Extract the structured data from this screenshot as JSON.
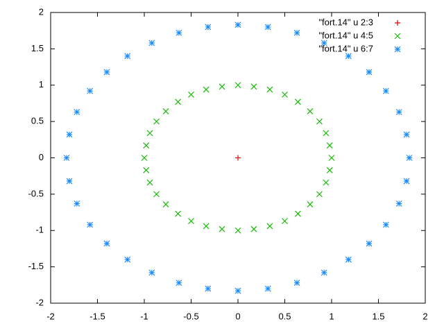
{
  "chart_data": {
    "type": "scatter",
    "xlim": [
      -2,
      2
    ],
    "ylim": [
      -2,
      2
    ],
    "xticks": [
      -2,
      -1.5,
      -1,
      -0.5,
      0,
      0.5,
      1,
      1.5,
      2
    ],
    "yticks": [
      -2,
      -1.5,
      -1,
      -0.5,
      0,
      0.5,
      1,
      1.5,
      2
    ],
    "grid": false,
    "legend": "top-right",
    "series": [
      {
        "name": "\"fort.14\" u 2:3",
        "color": "#e0000e",
        "marker": "plus",
        "x": [
          0
        ],
        "y": [
          0
        ]
      },
      {
        "name": "\"fort.14\" u 4:5",
        "color": "#11b900",
        "marker": "cross",
        "x": [
          1,
          0.98,
          0.94,
          0.87,
          0.77,
          0.64,
          0.5,
          0.34,
          0.17,
          0,
          -0.17,
          -0.34,
          -0.5,
          -0.64,
          -0.77,
          -0.87,
          -0.94,
          -0.98,
          -1,
          -0.98,
          -0.94,
          -0.87,
          -0.77,
          -0.64,
          -0.5,
          -0.34,
          -0.17,
          0,
          0.17,
          0.34,
          0.5,
          0.64,
          0.77,
          0.87,
          0.94,
          0.98
        ],
        "y": [
          0,
          0.17,
          0.34,
          0.5,
          0.64,
          0.77,
          0.87,
          0.94,
          0.98,
          1,
          0.98,
          0.94,
          0.87,
          0.77,
          0.64,
          0.5,
          0.34,
          0.17,
          0,
          -0.17,
          -0.34,
          -0.5,
          -0.64,
          -0.77,
          -0.87,
          -0.94,
          -0.98,
          -1,
          -0.98,
          -0.94,
          -0.87,
          -0.77,
          -0.64,
          -0.5,
          -0.34,
          -0.17
        ]
      },
      {
        "name": "\"fort.14\" u 6:7",
        "color": "#1a8cff",
        "marker": "star",
        "x": [
          1.83,
          1.8,
          1.72,
          1.58,
          1.4,
          1.18,
          0.92,
          0.63,
          0.32,
          0,
          -0.32,
          -0.63,
          -0.92,
          -1.18,
          -1.4,
          -1.58,
          -1.72,
          -1.8,
          -1.83,
          -1.8,
          -1.72,
          -1.58,
          -1.4,
          -1.18,
          -0.92,
          -0.63,
          -0.32,
          0,
          0.32,
          0.63,
          0.92,
          1.18,
          1.4,
          1.58,
          1.72,
          1.8
        ],
        "y": [
          0,
          0.32,
          0.63,
          0.92,
          1.18,
          1.4,
          1.58,
          1.72,
          1.8,
          1.83,
          1.8,
          1.72,
          1.58,
          1.4,
          1.18,
          0.92,
          0.63,
          0.32,
          0,
          -0.32,
          -0.63,
          -0.92,
          -1.18,
          -1.4,
          -1.58,
          -1.72,
          -1.8,
          -1.83,
          -1.8,
          -1.72,
          -1.58,
          -1.4,
          -1.18,
          -0.92,
          -0.63,
          -0.32
        ]
      }
    ]
  }
}
